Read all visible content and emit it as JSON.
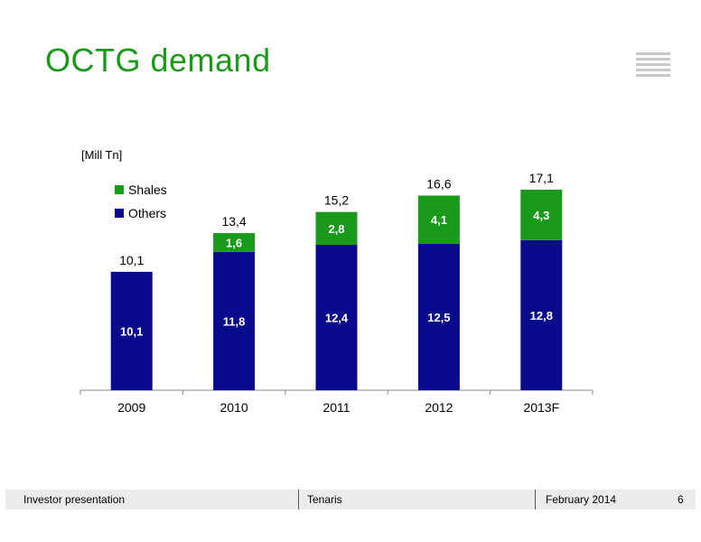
{
  "slide": {
    "title": "OCTG demand",
    "unit": "[Mill Tn]",
    "footer": {
      "left": "Investor presentation",
      "center": "Tenaris",
      "date": "February 2014",
      "page": "6"
    }
  },
  "chart_data": {
    "type": "bar",
    "stacked": true,
    "categories": [
      "2009",
      "2010",
      "2011",
      "2012",
      "2013F"
    ],
    "series": [
      {
        "name": "Others",
        "color": "#0a0a8c",
        "values": [
          10.1,
          11.8,
          12.4,
          12.5,
          12.8
        ],
        "labels": [
          "10,1",
          "11,8",
          "12,4",
          "12,5",
          "12,8"
        ]
      },
      {
        "name": "Shales",
        "color": "#1a9a1a",
        "values": [
          0,
          1.6,
          2.8,
          4.1,
          4.3
        ],
        "labels": [
          "",
          "1,6",
          "2,8",
          "4,1",
          "4,3"
        ]
      }
    ],
    "totals": [
      10.1,
      13.4,
      15.2,
      16.6,
      17.1
    ],
    "total_labels": [
      "10,1",
      "13,4",
      "15,2",
      "16,6",
      "17,1"
    ],
    "legend_order": [
      "Shales",
      "Others"
    ],
    "legend_position": "top-left",
    "ylabel": "[Mill Tn]",
    "ylim": [
      0,
      17.1
    ],
    "grid": false
  }
}
